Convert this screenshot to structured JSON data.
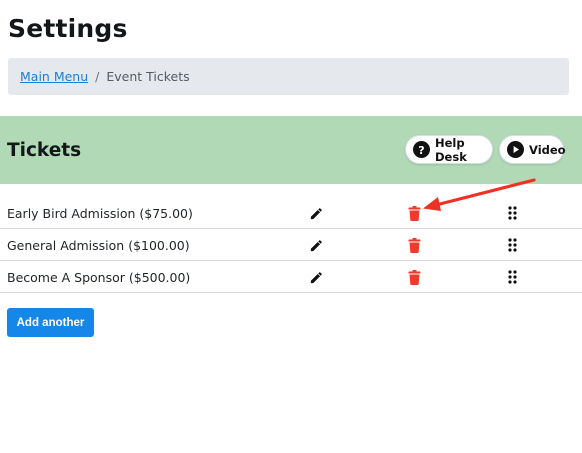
{
  "page": {
    "title": "Settings"
  },
  "breadcrumb": {
    "main_menu": "Main Menu",
    "separator": "/",
    "current": "Event Tickets"
  },
  "section": {
    "title": "Tickets",
    "background": "#b1d9b6"
  },
  "toolbar": {
    "help_label": "Help Desk",
    "video_label": "Video"
  },
  "tickets": [
    {
      "label": "Early Bird Admission ($75.00)"
    },
    {
      "label": "General Admission ($100.00)"
    },
    {
      "label": "Become A Sponsor ($500.00)"
    }
  ],
  "actions": {
    "add_label": "Add another"
  },
  "icons": [
    "question-circle-icon",
    "play-circle-icon",
    "pencil-icon",
    "trash-icon",
    "drag-handle-icon"
  ],
  "colors": {
    "accent": "#1487e8",
    "delete": "#ef3b2d",
    "annotation_arrow": "#ee3124"
  }
}
